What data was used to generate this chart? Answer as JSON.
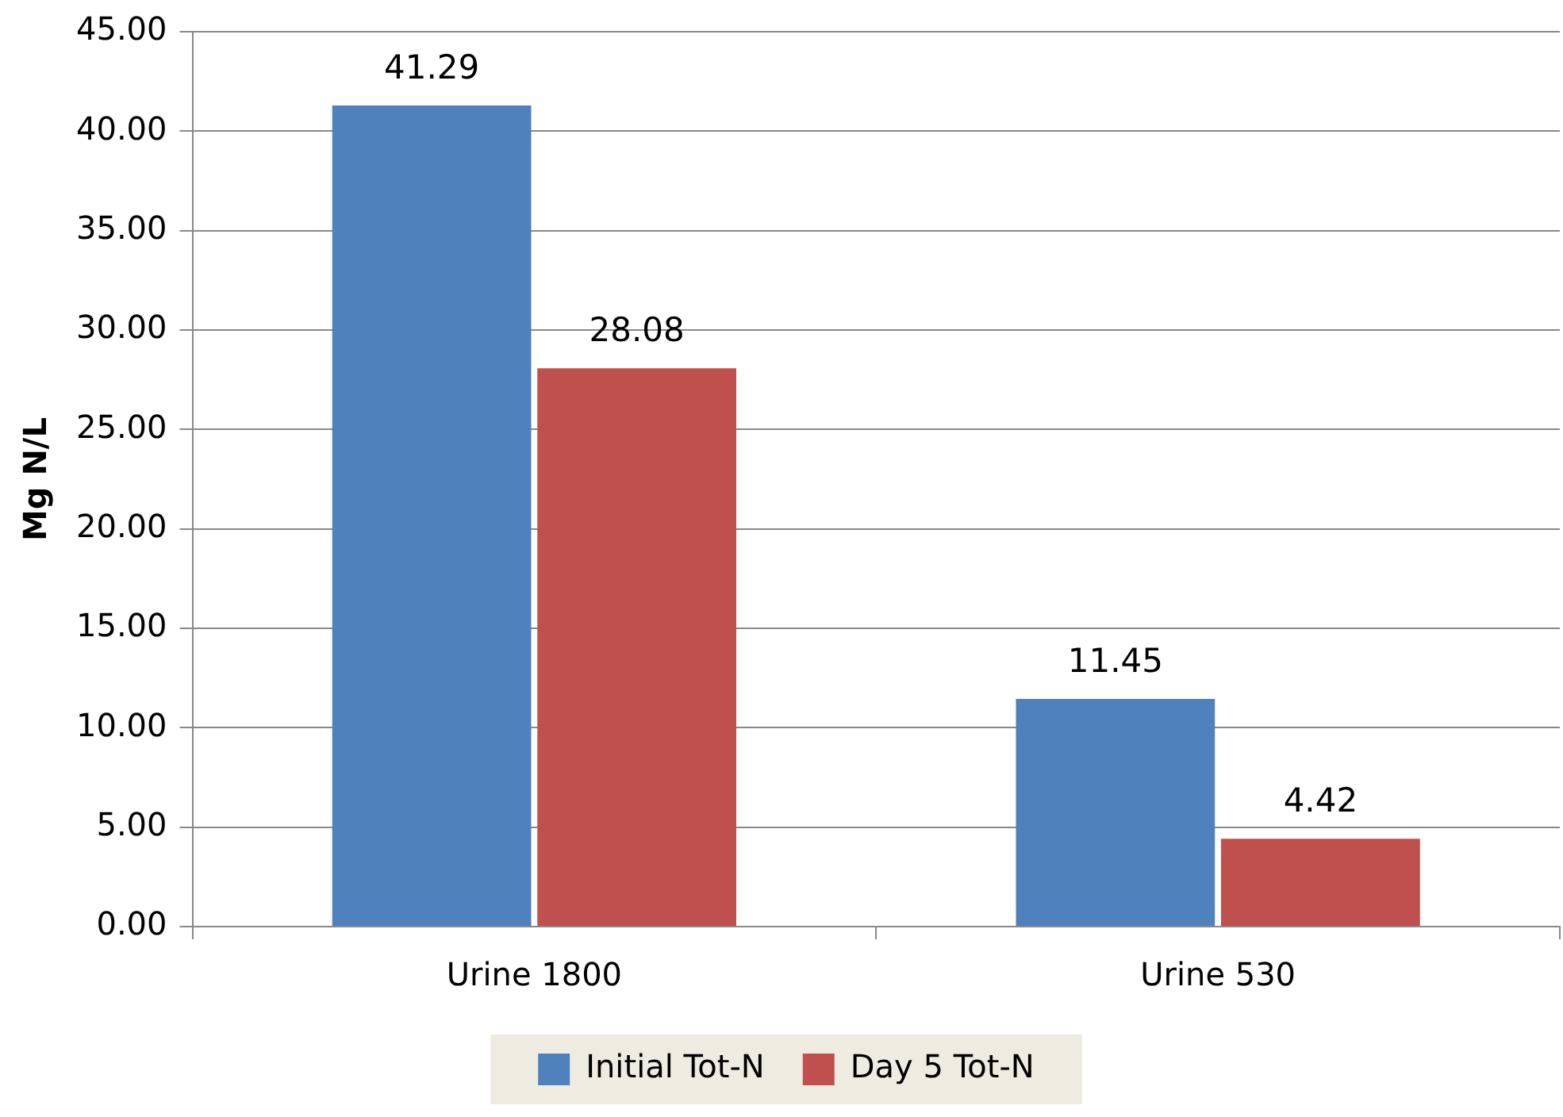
{
  "chart_data": {
    "type": "bar",
    "ylabel": "Mg N/L",
    "categories": [
      "Urine 1800",
      "Urine 530"
    ],
    "series": [
      {
        "name": "Initial Tot-N",
        "color": "#4f81bd",
        "values": [
          41.29,
          11.45
        ]
      },
      {
        "name": "Day 5 Tot-N",
        "color": "#c0504d",
        "values": [
          28.08,
          4.42
        ]
      }
    ],
    "ylim": [
      0,
      45
    ],
    "yticks": [
      {
        "value": 0,
        "label": "0.00"
      },
      {
        "value": 5,
        "label": "5.00"
      },
      {
        "value": 10,
        "label": "10.00"
      },
      {
        "value": 15,
        "label": "15.00"
      },
      {
        "value": 20,
        "label": "20.00"
      },
      {
        "value": 25,
        "label": "25.00"
      },
      {
        "value": 30,
        "label": "30.00"
      },
      {
        "value": 35,
        "label": "35.00"
      },
      {
        "value": 40,
        "label": "40.00"
      },
      {
        "value": 45,
        "label": "45.00"
      }
    ],
    "grid": "y",
    "legend": "bottom",
    "data_labels": true
  }
}
